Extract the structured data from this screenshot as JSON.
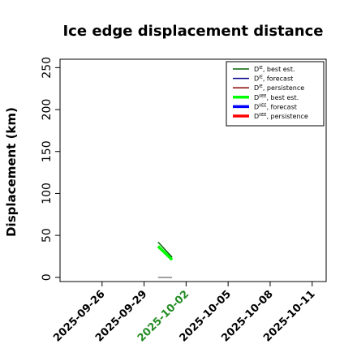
{
  "chart_data": {
    "type": "line",
    "title": "Ice edge displacement distance",
    "xlabel": "",
    "ylabel": "Displacement (km)",
    "ylim": [
      -5,
      260
    ],
    "xlim": [
      "2025-09-23",
      "2025-10-12"
    ],
    "yticks": [
      "0",
      "50",
      "100",
      "150",
      "200",
      "250"
    ],
    "xticks": [
      {
        "date": "2025-09-26",
        "label": "2025-09-26",
        "color": "#000000"
      },
      {
        "date": "2025-09-29",
        "label": "2025-09-29",
        "color": "#000000"
      },
      {
        "date": "2025-10-02",
        "label": "2025-10-02",
        "color": "#228B22"
      },
      {
        "date": "2025-10-05",
        "label": "2025-10-05",
        "color": "#000000"
      },
      {
        "date": "2025-10-08",
        "label": "2025-10-08",
        "color": "#000000"
      },
      {
        "date": "2025-10-11",
        "label": "2025-10-11",
        "color": "#000000"
      }
    ],
    "legend_position": "top-right",
    "grid": false,
    "series": [
      {
        "name": "D^IE, best est.",
        "name_base": "D",
        "name_sup": "IE",
        "name_suffix": ", best est.",
        "color": "#006400",
        "width": 1.5,
        "x": [
          "2025-09-30",
          "2025-10-01"
        ],
        "y": [
          42,
          24
        ]
      },
      {
        "name": "D^IE, forecast",
        "name_base": "D",
        "name_sup": "IE",
        "name_suffix": ", forecast",
        "color": "#00008B",
        "width": 1.5,
        "x": [],
        "y": []
      },
      {
        "name": "D^IE, persistence",
        "name_base": "D",
        "name_sup": "IE",
        "name_suffix": ", persistence",
        "color": "#8B0000",
        "width": 1.5,
        "x": [],
        "y": []
      },
      {
        "name": "D^IIEE, best est.",
        "name_base": "D",
        "name_sup": "IIEE",
        "name_suffix": ", best est.",
        "color": "#00FF00",
        "width": 3.5,
        "x": [
          "2025-09-30",
          "2025-10-01"
        ],
        "y": [
          37,
          21
        ]
      },
      {
        "name": "D^IIEE, forecast",
        "name_base": "D",
        "name_sup": "IIEE",
        "name_suffix": ", forecast",
        "color": "#0000FF",
        "width": 3.5,
        "x": [],
        "y": []
      },
      {
        "name": "D^IIEE, persistence",
        "name_base": "D",
        "name_sup": "IIEE",
        "name_suffix": ", persistence",
        "color": "#FF0000",
        "width": 3.5,
        "x": [],
        "y": []
      }
    ],
    "reference_line": {
      "color": "#808080",
      "x": [
        "2025-09-30",
        "2025-10-01"
      ],
      "y": [
        0,
        0
      ]
    }
  }
}
